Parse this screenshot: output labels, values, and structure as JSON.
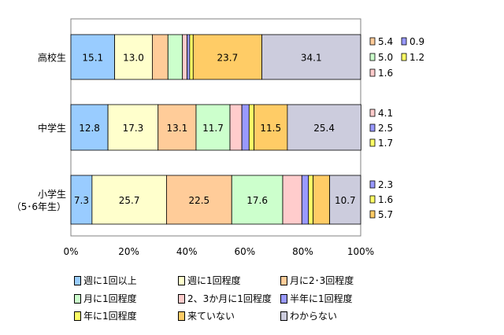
{
  "chart_data": {
    "type": "bar",
    "orientation": "horizontal",
    "stacked": true,
    "categories": [
      "高校生",
      "中学生",
      "小学生（5･6年生）"
    ],
    "category_lines": [
      [
        "高校生"
      ],
      [
        "中学生"
      ],
      [
        "小学生",
        "（5･6年生）"
      ]
    ],
    "series": [
      {
        "name": "週に1回以上",
        "color": "#99ccff",
        "values": [
          15.1,
          12.8,
          7.3
        ]
      },
      {
        "name": "週に1回程度",
        "color": "#ffffcc",
        "values": [
          13.0,
          17.3,
          25.7
        ]
      },
      {
        "name": "月に2･3回程度",
        "color": "#ffcc99",
        "values": [
          5.4,
          13.1,
          22.5
        ]
      },
      {
        "name": "月に1回程度",
        "color": "#ccffcc",
        "values": [
          5.0,
          11.7,
          17.6
        ]
      },
      {
        "name": "2、3か月に1回程度",
        "color": "#ffcccc",
        "values": [
          1.6,
          4.1,
          6.6
        ]
      },
      {
        "name": "半年に1回程度",
        "color": "#9999ff",
        "values": [
          0.9,
          2.5,
          2.3
        ]
      },
      {
        "name": "年に1回程度",
        "color": "#ffff66",
        "values": [
          1.2,
          1.7,
          1.6
        ]
      },
      {
        "name": "来ていない",
        "color": "#ffcc66",
        "values": [
          23.7,
          11.5,
          5.7
        ]
      },
      {
        "name": "わからない",
        "color": "#ccccdd",
        "values": [
          34.1,
          25.4,
          10.7
        ]
      }
    ],
    "xlim": [
      0,
      100
    ],
    "xticks": [
      0,
      20,
      40,
      60,
      80,
      100
    ],
    "xtick_labels": [
      "0%",
      "20%",
      "40%",
      "60%",
      "80%",
      "100%"
    ],
    "side_labels": [
      [
        {
          "text": "5.4",
          "color": "#ffcc99"
        },
        {
          "text": "0.9",
          "color": "#9999ff"
        },
        {
          "text": "5.0",
          "color": "#ccffcc"
        },
        {
          "text": "1.2",
          "color": "#ffff66"
        },
        {
          "text": "1.6",
          "color": "#ffcccc"
        }
      ],
      [
        {
          "text": "4.1",
          "color": "#ffcccc"
        },
        {
          "text": "2.5",
          "color": "#9999ff"
        },
        {
          "text": "1.7",
          "color": "#ffff66"
        }
      ],
      [
        {
          "text": "2.3",
          "color": "#9999ff"
        },
        {
          "text": "1.6",
          "color": "#ffff66"
        },
        {
          "text": "5.7",
          "color": "#ffcc66"
        }
      ]
    ],
    "grid": false,
    "legend": "bottom"
  }
}
